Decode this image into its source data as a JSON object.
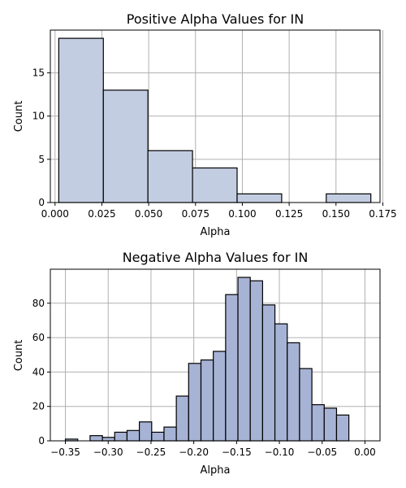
{
  "chart_data": [
    {
      "type": "bar",
      "title": "Positive Alpha Values for IN",
      "xlabel": "Alpha",
      "ylabel": "Count",
      "bar_color": "#c3cde2",
      "xlim": [
        -0.0025,
        0.1735
      ],
      "ylim": [
        0,
        19.95
      ],
      "xticks": [
        0.0,
        0.025,
        0.05,
        0.075,
        0.1,
        0.125,
        0.15,
        0.175
      ],
      "xtick_labels": [
        "0.000",
        "0.025",
        "0.050",
        "0.075",
        "0.100",
        "0.125",
        "0.150",
        "0.175"
      ],
      "yticks": [
        0,
        5,
        10,
        15
      ],
      "ytick_labels": [
        "0",
        "5",
        "10",
        "15"
      ],
      "bins": [
        {
          "x0": 0.002,
          "x1": 0.0258,
          "count": 19
        },
        {
          "x0": 0.0258,
          "x1": 0.0496,
          "count": 13
        },
        {
          "x0": 0.0496,
          "x1": 0.0734,
          "count": 6
        },
        {
          "x0": 0.0734,
          "x1": 0.0972,
          "count": 4
        },
        {
          "x0": 0.0972,
          "x1": 0.121,
          "count": 1
        },
        {
          "x0": 0.1448,
          "x1": 0.1686,
          "count": 1
        }
      ],
      "grid": true
    },
    {
      "type": "bar",
      "title": "Negative Alpha Values for IN",
      "xlabel": "Alpha",
      "ylabel": "Count",
      "bar_color": "#a7b3d5",
      "xlim": [
        -0.3676,
        0.0176
      ],
      "ylim": [
        0,
        99.75
      ],
      "xticks": [
        -0.35,
        -0.3,
        -0.25,
        -0.2,
        -0.15,
        -0.1,
        -0.05,
        0.0
      ],
      "xtick_labels": [
        "−0.35",
        "−0.30",
        "−0.25",
        "−0.20",
        "−0.15",
        "−0.10",
        "−0.05",
        "0.00"
      ],
      "yticks": [
        0,
        20,
        40,
        60,
        80
      ],
      "ytick_labels": [
        "0",
        "20",
        "40",
        "60",
        "80"
      ],
      "bins": [
        {
          "x0": -0.35,
          "x1": -0.3356,
          "count": 1
        },
        {
          "x0": -0.3356,
          "x1": -0.3212,
          "count": 0
        },
        {
          "x0": -0.3212,
          "x1": -0.3068,
          "count": 3
        },
        {
          "x0": -0.3068,
          "x1": -0.2924,
          "count": 2
        },
        {
          "x0": -0.2924,
          "x1": -0.278,
          "count": 5
        },
        {
          "x0": -0.278,
          "x1": -0.2636,
          "count": 6
        },
        {
          "x0": -0.2636,
          "x1": -0.2492,
          "count": 11
        },
        {
          "x0": -0.2492,
          "x1": -0.2348,
          "count": 5
        },
        {
          "x0": -0.2348,
          "x1": -0.2204,
          "count": 8
        },
        {
          "x0": -0.2204,
          "x1": -0.206,
          "count": 26
        },
        {
          "x0": -0.206,
          "x1": -0.1916,
          "count": 45
        },
        {
          "x0": -0.1916,
          "x1": -0.1772,
          "count": 47
        },
        {
          "x0": -0.1772,
          "x1": -0.1628,
          "count": 52
        },
        {
          "x0": -0.1628,
          "x1": -0.1484,
          "count": 85
        },
        {
          "x0": -0.1484,
          "x1": -0.134,
          "count": 95
        },
        {
          "x0": -0.134,
          "x1": -0.1196,
          "count": 93
        },
        {
          "x0": -0.1196,
          "x1": -0.1052,
          "count": 79
        },
        {
          "x0": -0.1052,
          "x1": -0.0908,
          "count": 68
        },
        {
          "x0": -0.0908,
          "x1": -0.0764,
          "count": 57
        },
        {
          "x0": -0.0764,
          "x1": -0.062,
          "count": 42
        },
        {
          "x0": -0.062,
          "x1": -0.0476,
          "count": 21
        },
        {
          "x0": -0.0476,
          "x1": -0.0332,
          "count": 19
        },
        {
          "x0": -0.0332,
          "x1": -0.0188,
          "count": 15
        }
      ],
      "grid": true
    }
  ]
}
